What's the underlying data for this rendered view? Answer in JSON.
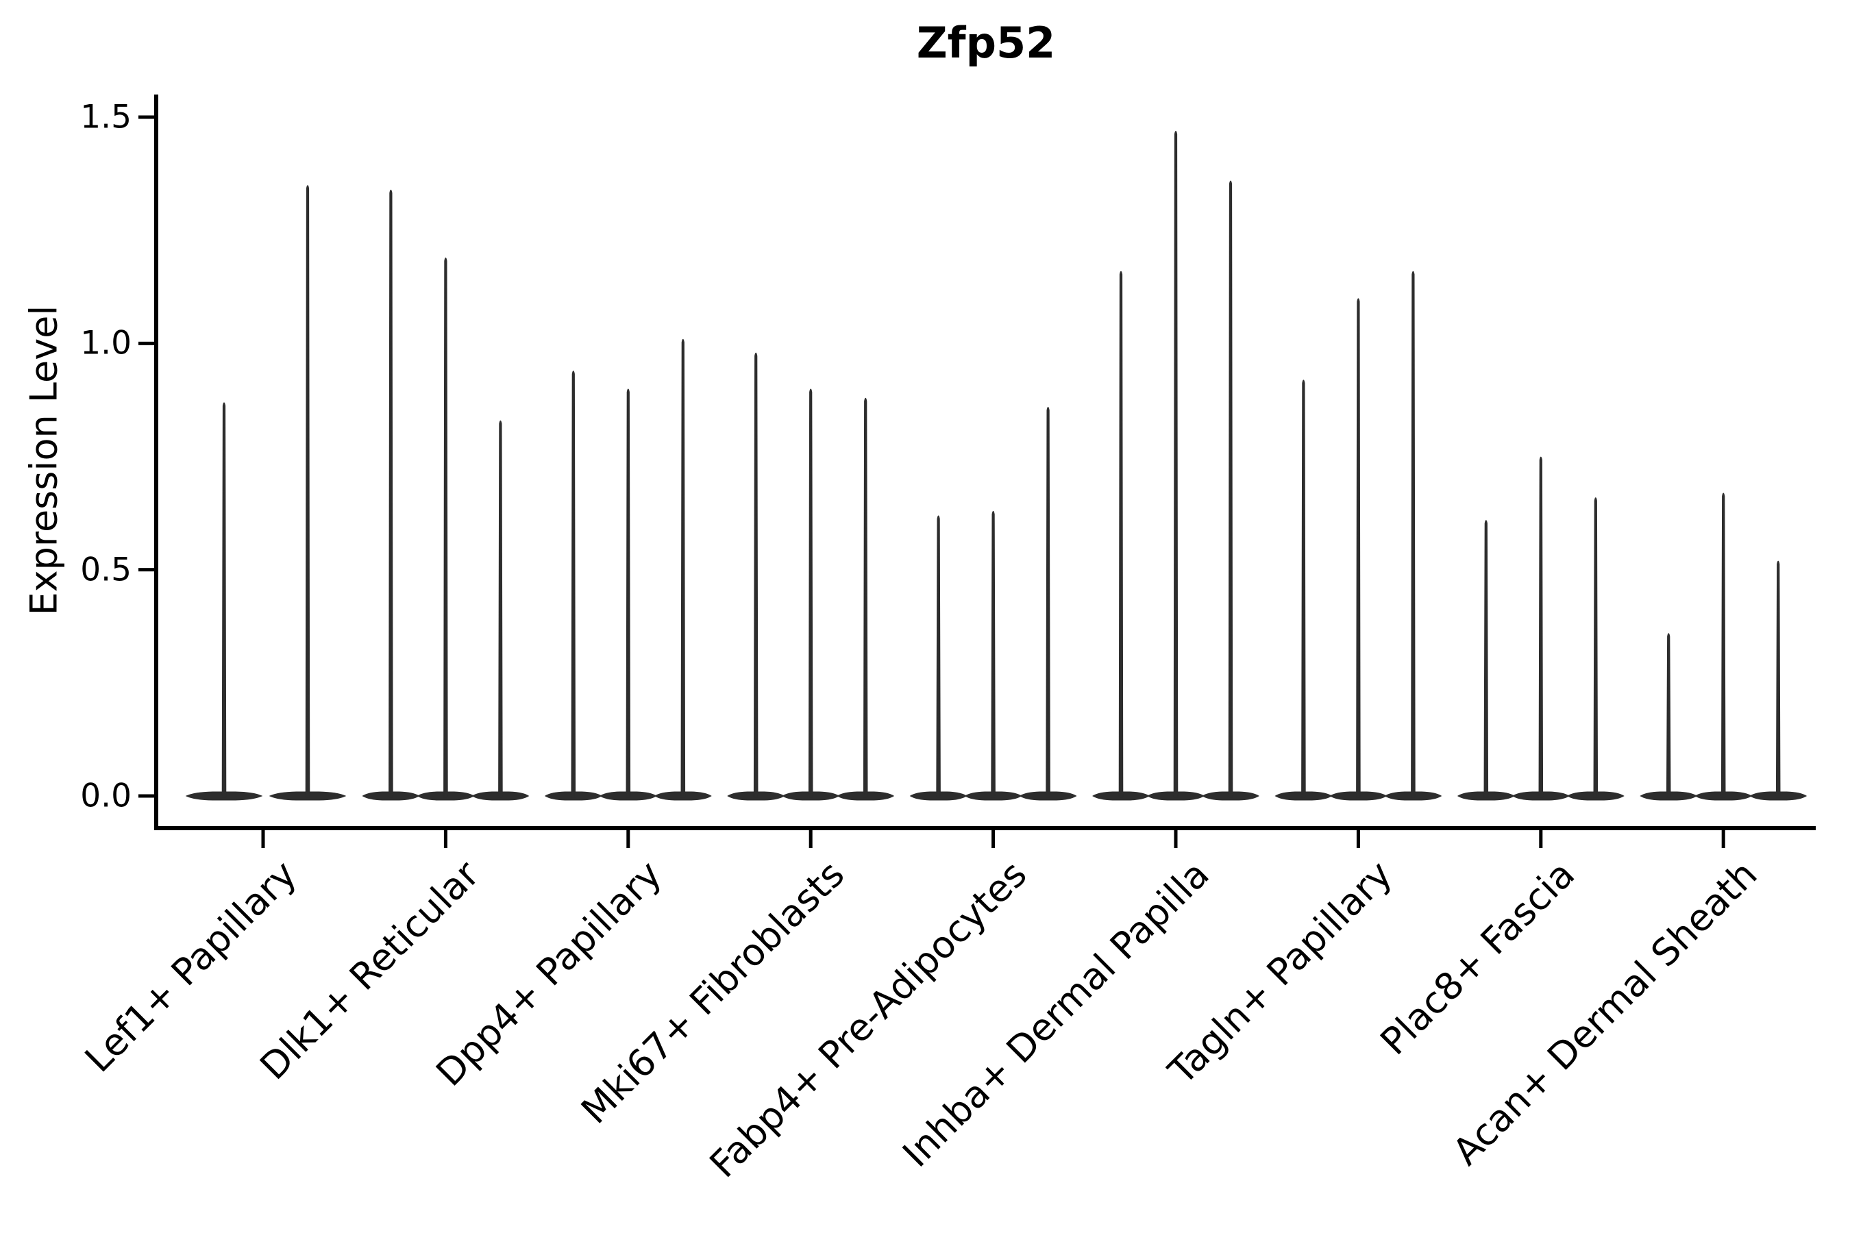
{
  "title": "Zfp52",
  "axes": {
    "y_label": "Expression Level",
    "y_tick_labels": [
      "0.0",
      "0.5",
      "1.0",
      "1.5"
    ]
  },
  "colors": {
    "violin_fill": "#2d2d2d",
    "axis_color": "#000000",
    "background": "#ffffff",
    "text_color": "#000000"
  },
  "chart_data": {
    "type": "violin",
    "title": "Zfp52",
    "xlabel": "",
    "ylabel": "Expression Level",
    "ylim": [
      0,
      1.5
    ],
    "yticks": [
      0.0,
      0.5,
      1.0,
      1.5
    ],
    "grid": false,
    "legend": "none",
    "description": "Very thin violin plots; each cell-type group contains 2-3 violins whose density mass sits at 0 with a thin spike rising to the maximum expression value.",
    "categories": [
      "Lef1+ Papillary",
      "Dlk1+ Reticular",
      "Dpp4+ Papillary",
      "Mki67+ Fibroblasts",
      "Fabp4+ Pre-Adipocytes",
      "Inhba+ Dermal Papilla",
      "Tagln+ Papillary",
      "Plac8+ Fascia",
      "Acan+ Dermal Sheath"
    ],
    "groups": [
      {
        "label": "Lef1+ Papillary",
        "violin_maxima": [
          0.87,
          1.35
        ]
      },
      {
        "label": "Dlk1+ Reticular",
        "violin_maxima": [
          1.34,
          1.19,
          0.83
        ]
      },
      {
        "label": "Dpp4+ Papillary",
        "violin_maxima": [
          0.94,
          0.9,
          1.01
        ]
      },
      {
        "label": "Mki67+ Fibroblasts",
        "violin_maxima": [
          0.98,
          0.9,
          0.88
        ]
      },
      {
        "label": "Fabp4+ Pre-Adipocytes",
        "violin_maxima": [
          0.62,
          0.63,
          0.86
        ]
      },
      {
        "label": "Inhba+ Dermal Papilla",
        "violin_maxima": [
          1.16,
          1.47,
          1.36
        ]
      },
      {
        "label": "Tagln+ Papillary",
        "violin_maxima": [
          0.92,
          1.1,
          1.16
        ]
      },
      {
        "label": "Plac8+ Fascia",
        "violin_maxima": [
          0.61,
          0.75,
          0.66
        ]
      },
      {
        "label": "Acan+ Dermal Sheath",
        "violin_maxima": [
          0.36,
          0.67,
          0.52
        ]
      }
    ],
    "baseline_value": 0.0
  }
}
